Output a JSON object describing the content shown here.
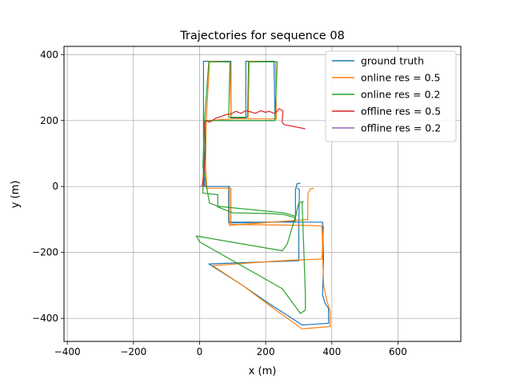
{
  "chart_data": {
    "type": "line",
    "title": "Trajectories for sequence 08",
    "xlabel": "x (m)",
    "ylabel": "y (m)",
    "xlim": [
      -410,
      790
    ],
    "ylim": [
      -470,
      425
    ],
    "xticks": [
      -400,
      -200,
      0,
      200,
      400,
      600
    ],
    "yticks": [
      -400,
      -200,
      0,
      200,
      400
    ],
    "xtick_labels": [
      "−400",
      "−200",
      "0",
      "200",
      "400",
      "600"
    ],
    "ytick_labels": [
      "−400",
      "−200",
      "0",
      "200",
      "400"
    ],
    "grid": true,
    "legend_position": "top-right",
    "series": [
      {
        "name": "ground truth",
        "color": "#1f77b4",
        "points": [
          [
            305,
            10
          ],
          [
            295,
            8
          ],
          [
            290,
            -10
          ],
          [
            290,
            -105
          ],
          [
            205,
            -108
          ],
          [
            130,
            -110
          ],
          [
            88,
            -110
          ],
          [
            88,
            0
          ],
          [
            15,
            0
          ],
          [
            15,
            65
          ],
          [
            12,
            200
          ],
          [
            12,
            380
          ],
          [
            95,
            380
          ],
          [
            95,
            208
          ],
          [
            140,
            208
          ],
          [
            140,
            380
          ],
          [
            225,
            380
          ],
          [
            228,
            210
          ],
          [
            228,
            200
          ],
          [
            100,
            200
          ],
          [
            12,
            200
          ],
          [
            12,
            65
          ],
          [
            12,
            0
          ],
          [
            90,
            0
          ],
          [
            90,
            -108
          ],
          [
            295,
            -108
          ],
          [
            355,
            -108
          ],
          [
            372,
            -108
          ],
          [
            375,
            -220
          ],
          [
            372,
            -330
          ],
          [
            380,
            -355
          ],
          [
            390,
            -370
          ],
          [
            390,
            -415
          ],
          [
            310,
            -420
          ],
          [
            210,
            -355
          ],
          [
            130,
            -300
          ],
          [
            28,
            -235
          ],
          [
            300,
            -225
          ],
          [
            300,
            -110
          ],
          [
            302,
            -10
          ],
          [
            295,
            -5
          ]
        ]
      },
      {
        "name": "online res = 0.5",
        "color": "#ff7f0e",
        "points": [
          [
            345,
            -5
          ],
          [
            335,
            -8
          ],
          [
            328,
            -20
          ],
          [
            327,
            -100
          ],
          [
            90,
            -118
          ],
          [
            90,
            -5
          ],
          [
            20,
            -5
          ],
          [
            18,
            60
          ],
          [
            20,
            195
          ],
          [
            30,
            380
          ],
          [
            93,
            378
          ],
          [
            95,
            210
          ],
          [
            147,
            210
          ],
          [
            150,
            380
          ],
          [
            230,
            378
          ],
          [
            232,
            205
          ],
          [
            100,
            205
          ],
          [
            18,
            200
          ],
          [
            18,
            60
          ],
          [
            22,
            -5
          ],
          [
            95,
            -5
          ],
          [
            95,
            -115
          ],
          [
            330,
            -118
          ],
          [
            370,
            -120
          ],
          [
            375,
            -300
          ],
          [
            385,
            -345
          ],
          [
            395,
            -380
          ],
          [
            395,
            -425
          ],
          [
            310,
            -432
          ],
          [
            210,
            -360
          ],
          [
            130,
            -300
          ],
          [
            40,
            -240
          ],
          [
            250,
            -225
          ],
          [
            370,
            -220
          ],
          [
            375,
            -120
          ]
        ]
      },
      {
        "name": "online res = 0.2",
        "color": "#2ca02c",
        "points": [
          [
            315,
            -45
          ],
          [
            300,
            -50
          ],
          [
            295,
            -70
          ],
          [
            290,
            -95
          ],
          [
            255,
            -85
          ],
          [
            210,
            -82
          ],
          [
            100,
            -80
          ],
          [
            55,
            -62
          ],
          [
            55,
            -25
          ],
          [
            10,
            -20
          ],
          [
            12,
            60
          ],
          [
            15,
            200
          ],
          [
            28,
            378
          ],
          [
            92,
            378
          ],
          [
            88,
            210
          ],
          [
            145,
            210
          ],
          [
            148,
            378
          ],
          [
            235,
            378
          ],
          [
            228,
            200
          ],
          [
            100,
            200
          ],
          [
            15,
            200
          ],
          [
            10,
            60
          ],
          [
            30,
            -50
          ],
          [
            55,
            -60
          ],
          [
            255,
            -80
          ],
          [
            290,
            -90
          ],
          [
            265,
            -175
          ],
          [
            250,
            -195
          ],
          [
            -10,
            -150
          ],
          [
            0,
            -168
          ],
          [
            250,
            -310
          ],
          [
            305,
            -385
          ],
          [
            320,
            -375
          ],
          [
            320,
            -325
          ],
          [
            310,
            -45
          ]
        ]
      },
      {
        "name": "offline res = 0.5",
        "color": "#d62728",
        "points": [
          [
            320,
            175
          ],
          [
            255,
            188
          ],
          [
            250,
            195
          ],
          [
            252,
            230
          ],
          [
            240,
            236
          ],
          [
            235,
            228
          ],
          [
            225,
            222
          ],
          [
            210,
            228
          ],
          [
            200,
            225
          ],
          [
            185,
            230
          ],
          [
            170,
            222
          ],
          [
            155,
            226
          ],
          [
            140,
            230
          ],
          [
            125,
            222
          ],
          [
            110,
            228
          ],
          [
            95,
            220
          ],
          [
            80,
            218
          ],
          [
            65,
            212
          ],
          [
            50,
            208
          ],
          [
            38,
            200
          ],
          [
            30,
            195
          ],
          [
            20,
            200
          ],
          [
            15,
            190
          ],
          [
            18,
            120
          ],
          [
            15,
            60
          ],
          [
            10,
            20
          ],
          [
            8,
            0
          ]
        ]
      },
      {
        "name": "offline res = 0.2",
        "color": "#9467bd",
        "points": [
          [
            0,
            0
          ],
          [
            8,
            0
          ],
          [
            15,
            2
          ],
          [
            20,
            5
          ]
        ]
      }
    ]
  }
}
